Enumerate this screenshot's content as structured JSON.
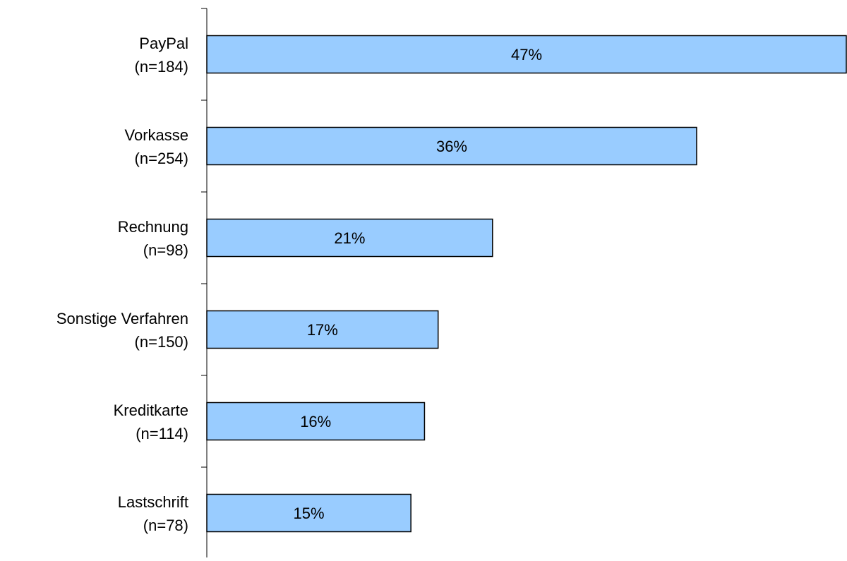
{
  "chart_data": {
    "type": "bar",
    "orientation": "horizontal",
    "title": "",
    "xlabel": "",
    "ylabel": "",
    "categories": [
      {
        "name": "PayPal",
        "n": "(n=184)"
      },
      {
        "name": "Vorkasse",
        "n": "(n=254)"
      },
      {
        "name": "Rechnung",
        "n": "(n=98)"
      },
      {
        "name": "Sonstige Verfahren",
        "n": "(n=150)"
      },
      {
        "name": "Kreditkarte",
        "n": "(n=114)"
      },
      {
        "name": "Lastschrift",
        "n": "(n=78)"
      }
    ],
    "values": [
      47,
      36,
      21,
      17,
      16,
      15
    ],
    "data_labels": [
      "47%",
      "36%",
      "21%",
      "17%",
      "16%",
      "15%"
    ],
    "unit": "%",
    "xlim": [
      0,
      47
    ],
    "grid": false,
    "legend": "none",
    "colors": {
      "bar_fill": "#99CCFF",
      "bar_stroke": "#000000",
      "axis": "#000000"
    }
  }
}
